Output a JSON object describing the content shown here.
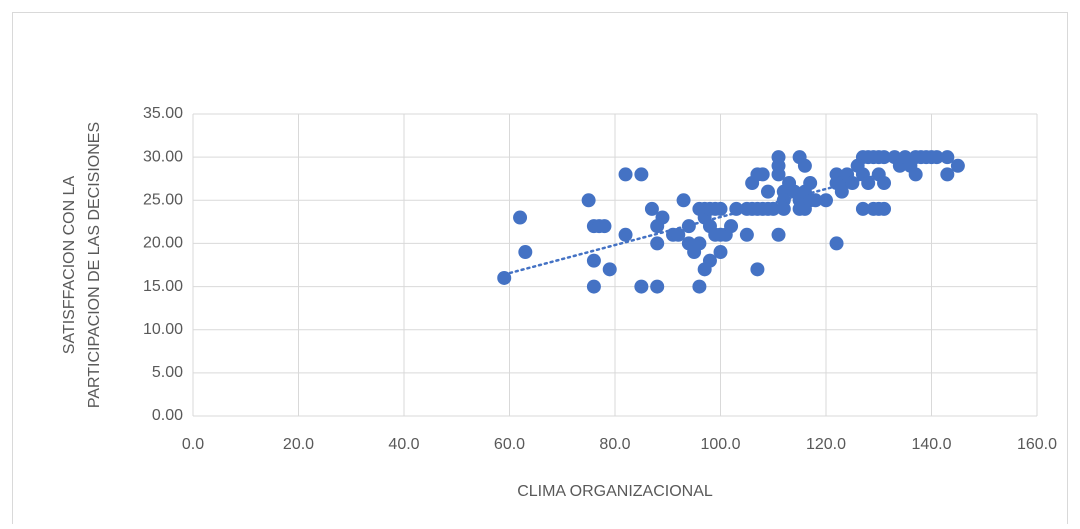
{
  "chart_data": {
    "type": "scatter",
    "xlabel": "CLIMA ORGANIZACIONAL",
    "ylabel": [
      "SATISFFACION CON LA",
      "PARTICIPACION DE LAS DECISIONES"
    ],
    "xlim": [
      0,
      160
    ],
    "ylim": [
      0,
      35
    ],
    "xticks": [
      {
        "value": 0,
        "label": "0.0"
      },
      {
        "value": 20,
        "label": "20.0"
      },
      {
        "value": 40,
        "label": "40.0"
      },
      {
        "value": 60,
        "label": "60.0"
      },
      {
        "value": 80,
        "label": "80.0"
      },
      {
        "value": 100,
        "label": "100.0"
      },
      {
        "value": 120,
        "label": "120.0"
      },
      {
        "value": 140,
        "label": "140.0"
      },
      {
        "value": 160,
        "label": "160.0"
      }
    ],
    "yticks": [
      {
        "value": 0,
        "label": "0.00"
      },
      {
        "value": 5,
        "label": "5.00"
      },
      {
        "value": 10,
        "label": "10.00"
      },
      {
        "value": 15,
        "label": "15.00"
      },
      {
        "value": 20,
        "label": "20.00"
      },
      {
        "value": 25,
        "label": "25.00"
      },
      {
        "value": 30,
        "label": "30.00"
      },
      {
        "value": 35,
        "label": "35.00"
      }
    ],
    "grid": true,
    "color": "#4472c4",
    "x": [
      59,
      62,
      63,
      75,
      76,
      76,
      76,
      77,
      78,
      79,
      82,
      82,
      85,
      85,
      87,
      88,
      88,
      88,
      89,
      91,
      92,
      93,
      94,
      94,
      95,
      96,
      96,
      96,
      97,
      97,
      97,
      98,
      98,
      98,
      99,
      99,
      100,
      100,
      100,
      101,
      102,
      103,
      105,
      105,
      106,
      106,
      107,
      107,
      107,
      108,
      108,
      109,
      109,
      110,
      111,
      111,
      111,
      111,
      112,
      112,
      112,
      113,
      114,
      115,
      115,
      115,
      116,
      116,
      116,
      117,
      117,
      118,
      120,
      122,
      122,
      122,
      123,
      123,
      124,
      125,
      126,
      127,
      127,
      127,
      128,
      128,
      129,
      129,
      130,
      130,
      130,
      131,
      131,
      131,
      133,
      134,
      135,
      136,
      137,
      137,
      138,
      139,
      140,
      141,
      143,
      143,
      145
    ],
    "y": [
      16,
      23,
      19,
      25,
      22,
      18,
      15,
      22,
      22,
      17,
      28,
      21,
      28,
      15,
      24,
      22,
      20,
      15,
      23,
      21,
      21,
      25,
      22,
      20,
      19,
      20,
      24,
      15,
      23,
      17,
      24,
      24,
      22,
      18,
      24,
      21,
      24,
      21,
      19,
      21,
      22,
      24,
      21,
      24,
      27,
      24,
      28,
      17,
      24,
      28,
      24,
      26,
      24,
      24,
      30,
      29,
      28,
      21,
      26,
      25,
      24,
      27,
      26,
      30,
      25,
      24,
      29,
      26,
      24,
      27,
      25,
      25,
      25,
      28,
      27,
      20,
      27,
      26,
      28,
      27,
      29,
      30,
      28,
      24,
      30,
      27,
      30,
      24,
      30,
      28,
      24,
      30,
      27,
      24,
      30,
      29,
      30,
      29,
      28,
      30,
      30,
      30,
      30,
      30,
      30,
      28,
      29
    ],
    "trendline": {
      "x": [
        59,
        131
      ],
      "y": [
        16.4,
        28.1
      ]
    }
  }
}
